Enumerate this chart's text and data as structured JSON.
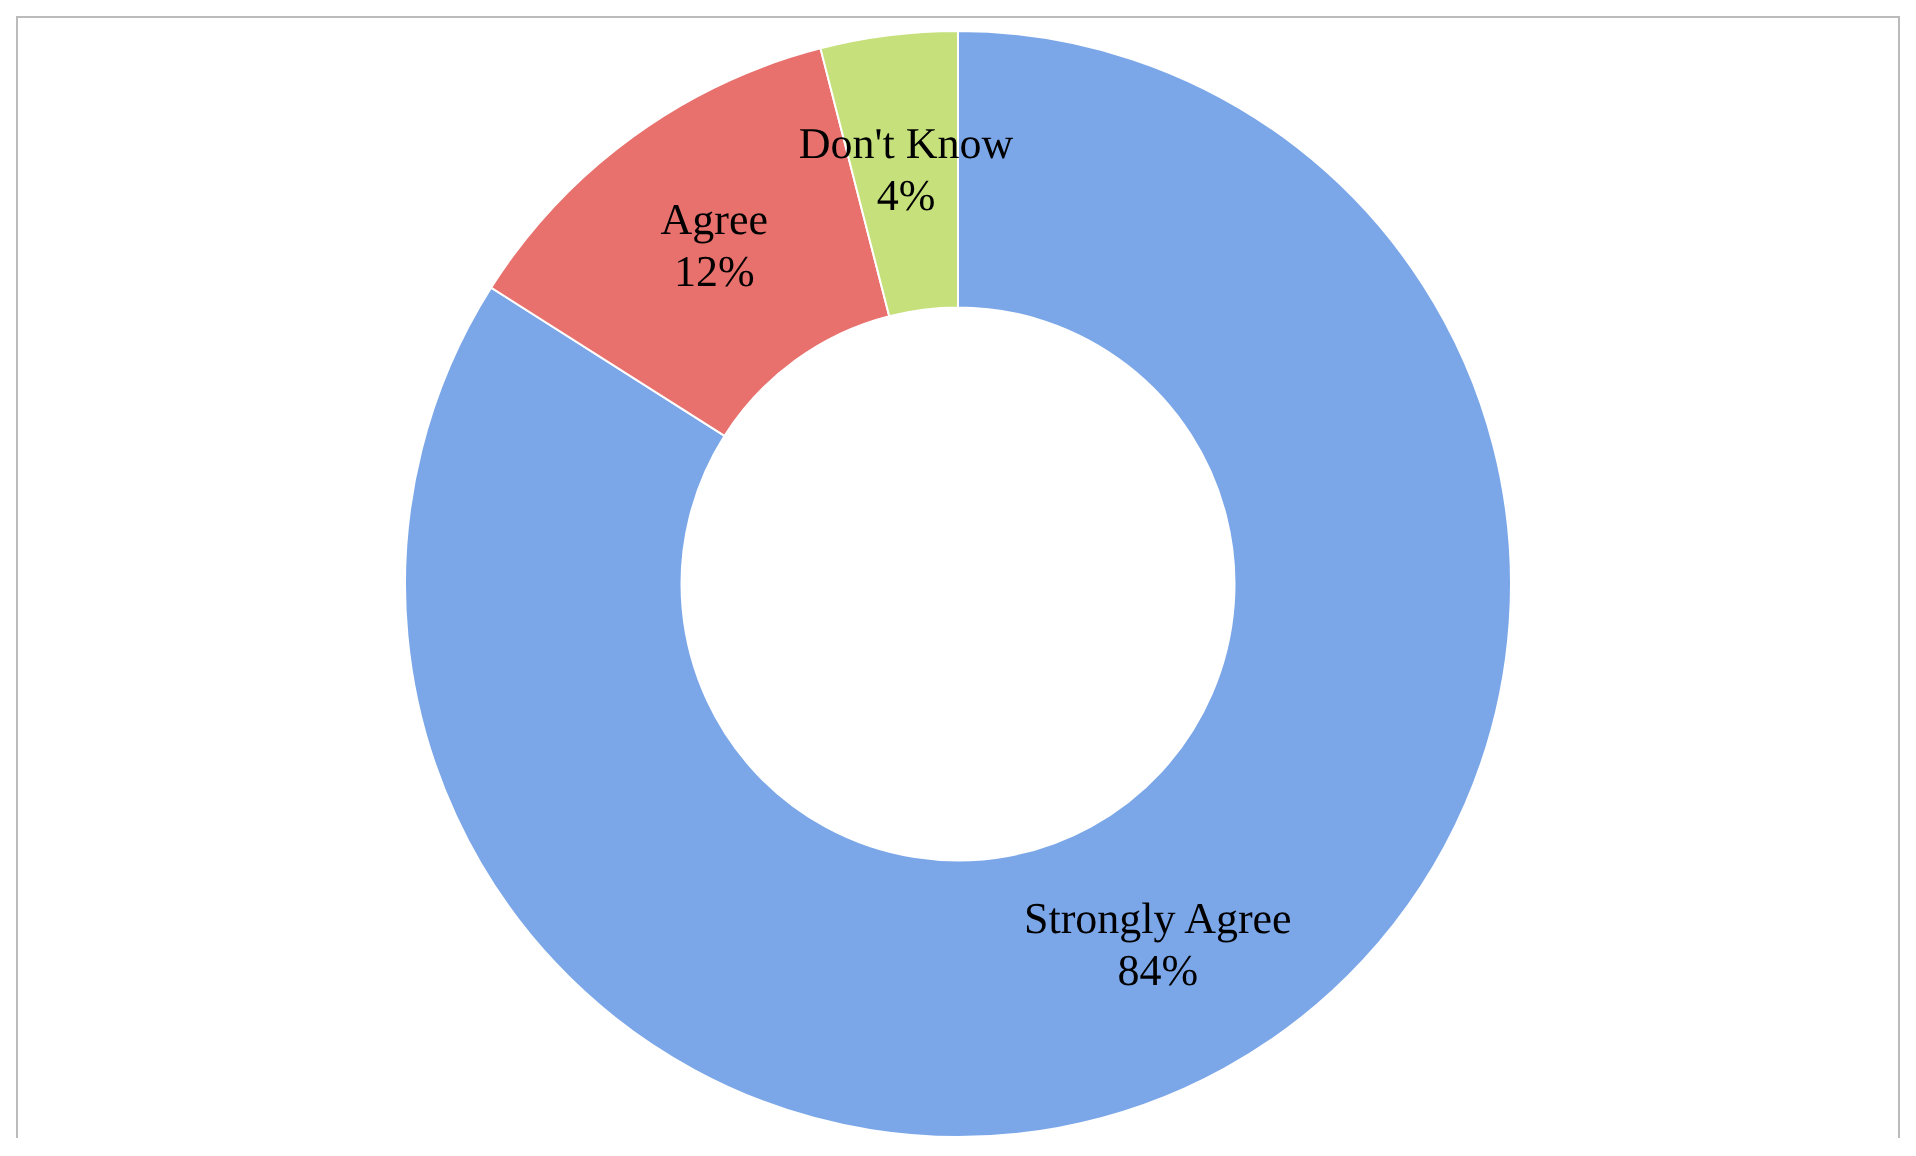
{
  "chart_data": {
    "type": "donut",
    "categories": [
      "Strongly Agree",
      "Agree",
      "Don't Know"
    ],
    "values": [
      84,
      12,
      4
    ],
    "value_labels": [
      "84%",
      "12%",
      "4%"
    ],
    "colors": [
      "#7ba7e8",
      "#e8716d",
      "#c6e07c"
    ],
    "legend": false
  }
}
